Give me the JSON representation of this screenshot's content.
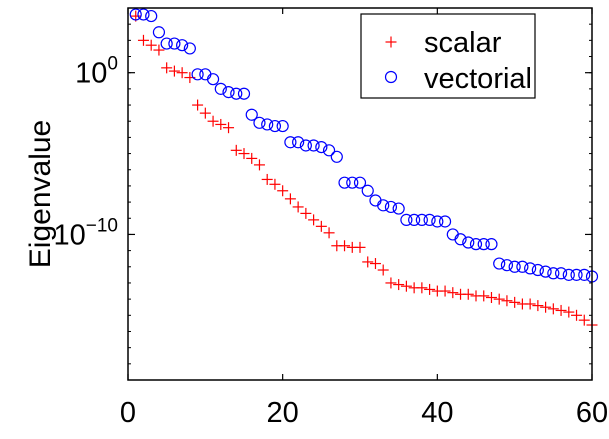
{
  "chart_data": {
    "type": "scatter",
    "xlabel": "",
    "ylabel": "Eigenvalue",
    "xlim": [
      0,
      60
    ],
    "ylim_log10": [
      -19,
      4
    ],
    "yscale": "log",
    "x_ticks": [
      0,
      20,
      40,
      60
    ],
    "y_ticks": [
      {
        "value_log10": 0,
        "base": "10",
        "exp": "0"
      },
      {
        "value_log10": -10,
        "base": "10",
        "exp": "−10"
      }
    ],
    "grid": false,
    "legend_position": "top-right",
    "series": [
      {
        "name": "scalar",
        "marker": "plus",
        "color": "#ff0000",
        "x": [
          1,
          2,
          3,
          4,
          5,
          6,
          7,
          8,
          9,
          10,
          11,
          12,
          13,
          14,
          15,
          16,
          17,
          18,
          19,
          20,
          21,
          22,
          23,
          24,
          25,
          26,
          27,
          28,
          29,
          30,
          31,
          32,
          33,
          34,
          35,
          36,
          37,
          38,
          39,
          40,
          41,
          42,
          43,
          44,
          45,
          46,
          47,
          48,
          49,
          50,
          51,
          52,
          53,
          54,
          55,
          56,
          57,
          58,
          59,
          60
        ],
        "y_log10": [
          3.5,
          2.0,
          1.7,
          1.4,
          0.3,
          0.1,
          0.0,
          -0.3,
          -2.0,
          -2.5,
          -3.0,
          -3.2,
          -3.4,
          -4.8,
          -5.0,
          -5.3,
          -5.7,
          -6.6,
          -6.9,
          -7.3,
          -7.8,
          -8.3,
          -8.7,
          -9.1,
          -9.5,
          -9.9,
          -10.7,
          -10.7,
          -10.8,
          -10.8,
          -11.7,
          -11.8,
          -12.2,
          -13.0,
          -13.1,
          -13.2,
          -13.3,
          -13.3,
          -13.4,
          -13.5,
          -13.5,
          -13.6,
          -13.7,
          -13.7,
          -13.8,
          -13.8,
          -13.9,
          -14.0,
          -14.1,
          -14.2,
          -14.3,
          -14.3,
          -14.4,
          -14.5,
          -14.6,
          -14.7,
          -14.8,
          -15.0,
          -15.3,
          -15.6
        ]
      },
      {
        "name": "vectorial",
        "marker": "circle",
        "color": "#0000ff",
        "x": [
          1,
          2,
          3,
          4,
          5,
          6,
          7,
          8,
          9,
          10,
          11,
          12,
          13,
          14,
          15,
          16,
          17,
          18,
          19,
          20,
          21,
          22,
          23,
          24,
          25,
          26,
          27,
          28,
          29,
          30,
          31,
          32,
          33,
          34,
          35,
          36,
          37,
          38,
          39,
          40,
          41,
          42,
          43,
          44,
          45,
          46,
          47,
          48,
          49,
          50,
          51,
          52,
          53,
          54,
          55,
          56,
          57,
          58,
          59,
          60
        ],
        "y_log10": [
          3.6,
          3.6,
          3.5,
          2.5,
          1.8,
          1.8,
          1.7,
          1.5,
          -0.1,
          -0.1,
          -0.4,
          -1.0,
          -1.2,
          -1.3,
          -1.3,
          -2.6,
          -3.1,
          -3.2,
          -3.3,
          -3.3,
          -4.3,
          -4.3,
          -4.5,
          -4.5,
          -4.6,
          -4.8,
          -5.2,
          -6.8,
          -6.8,
          -6.8,
          -7.3,
          -7.9,
          -8.2,
          -8.3,
          -8.4,
          -9.1,
          -9.1,
          -9.1,
          -9.1,
          -9.2,
          -9.2,
          -10.0,
          -10.3,
          -10.5,
          -10.6,
          -10.6,
          -10.6,
          -11.8,
          -11.9,
          -12.0,
          -12.0,
          -12.1,
          -12.2,
          -12.3,
          -12.4,
          -12.4,
          -12.5,
          -12.5,
          -12.5,
          -12.6
        ]
      }
    ]
  }
}
